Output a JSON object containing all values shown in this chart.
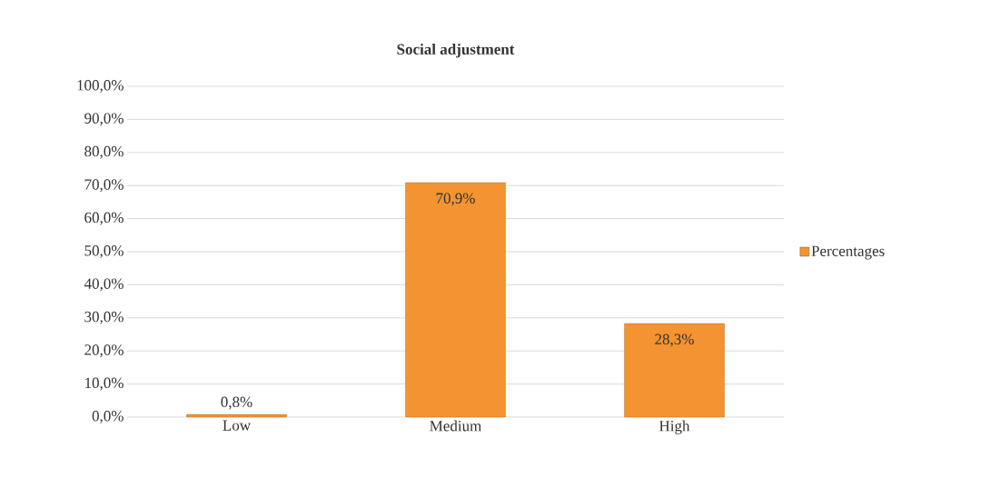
{
  "chart_data": {
    "type": "bar",
    "title": "Social adjustment",
    "categories": [
      "Low",
      "Medium",
      "High"
    ],
    "series": [
      {
        "name": "Percentages",
        "color": "#f39331",
        "values": [
          0.8,
          70.9,
          28.3
        ],
        "value_labels": [
          "0,8%",
          "70,9%",
          "28,3%"
        ]
      }
    ],
    "ylim": [
      0,
      100
    ],
    "yticks": [
      {
        "value": 0,
        "label": "0,0%"
      },
      {
        "value": 10,
        "label": "10,0%"
      },
      {
        "value": 20,
        "label": "20,0%"
      },
      {
        "value": 30,
        "label": "30,0%"
      },
      {
        "value": 40,
        "label": "40,0%"
      },
      {
        "value": 50,
        "label": "50,0%"
      },
      {
        "value": 60,
        "label": "60,0%"
      },
      {
        "value": 70,
        "label": "70,0%"
      },
      {
        "value": 80,
        "label": "80,0%"
      },
      {
        "value": 90,
        "label": "90,0%"
      },
      {
        "value": 100,
        "label": "100,0%"
      }
    ],
    "grid": "y",
    "legend": "right"
  }
}
